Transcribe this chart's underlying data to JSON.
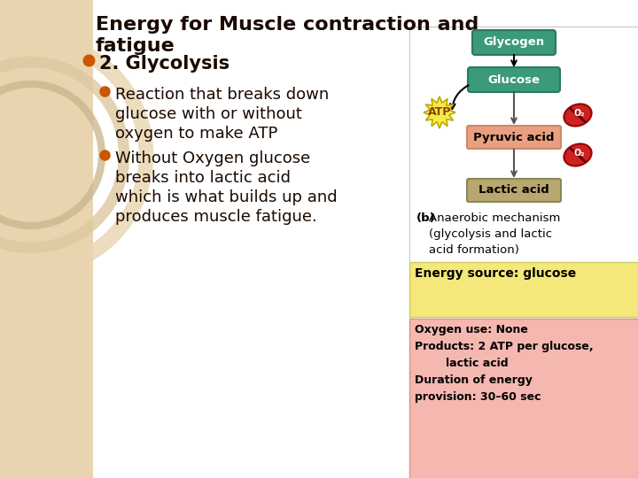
{
  "title_line1": "Energy for Muscle contraction and",
  "title_line2": "fatigue",
  "bg_left_color": "#e8d5b0",
  "bg_right_color": "#ffffff",
  "bullet1": "2. Glycolysis",
  "sub_bullet1_line1": "Reaction that breaks down",
  "sub_bullet1_line2": "glucose with or without",
  "sub_bullet1_line3": "oxygen to make ATP",
  "sub_bullet2_line1": "Without Oxygen glucose",
  "sub_bullet2_line2": "breaks into lactic acid",
  "sub_bullet2_line3": "which is what builds up and",
  "sub_bullet2_line4": "produces muscle fatigue.",
  "glycogen_color": "#3a9a7a",
  "glucose_color": "#3a9a7a",
  "pyruvic_color": "#e8a080",
  "lactic_color": "#b8a870",
  "atp_color": "#f5e84a",
  "o2_color": "#cc2222",
  "caption_bold": "(b)",
  "caption_text": "Anaerobic mechanism\n(glycolysis and lactic\nacid formation)",
  "energy_source_bg": "#f5e87a",
  "energy_source_text": "Energy source: glucose",
  "info_bg": "#f5b8b0",
  "info_line1": "Oxygen use: None",
  "info_line2": "Products: 2 ATP per glucose,",
  "info_line3": "        lactic acid",
  "info_line4": "Duration of energy",
  "info_line5": "provision: 30–60 sec",
  "left_strip_color": "#d4b896",
  "circle_colors": [
    "#e8d5b0",
    "#dcc8a0",
    "#cbb890"
  ],
  "bullet_color": "#cc5500",
  "text_color": "#1a0a00"
}
